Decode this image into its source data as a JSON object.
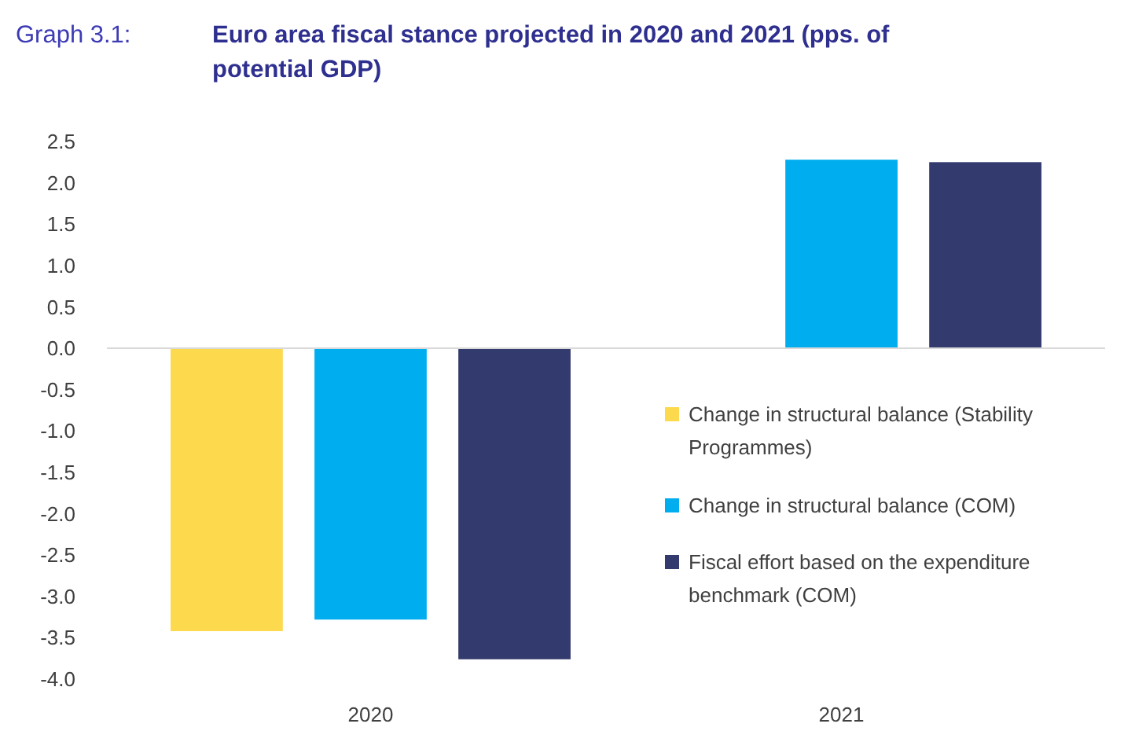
{
  "chart_data": {
    "type": "bar",
    "title": "Euro area fiscal stance projected in 2020 and 2021 (pps. of potential GDP)",
    "annotations": [
      "Graph 3.1:"
    ],
    "categories": [
      "2020",
      "2021"
    ],
    "series": [
      {
        "name": "Change in structural balance (Stability Programmes)",
        "color": "#fdd94e",
        "values": [
          -3.42,
          null
        ]
      },
      {
        "name": "Change in structural balance (COM)",
        "color": "#00aeef",
        "values": [
          -3.28,
          2.28
        ]
      },
      {
        "name": "Fiscal effort based on the expenditure benchmark (COM)",
        "color": "#333a6e",
        "values": [
          -3.76,
          2.25
        ]
      }
    ],
    "ylim": [
      -4.0,
      2.5
    ],
    "yticks": [
      {
        "value": -4,
        "label": "-4.0"
      },
      {
        "value": -3.5,
        "label": "-3.5"
      },
      {
        "value": -3,
        "label": "-3.0"
      },
      {
        "value": -2.5,
        "label": "-2.5"
      },
      {
        "value": -2,
        "label": "-2.0"
      },
      {
        "value": -1.5,
        "label": "-1.5"
      },
      {
        "value": -1,
        "label": "-1.0"
      },
      {
        "value": -0.5,
        "label": "-0.5"
      },
      {
        "value": 0,
        "label": "0.0"
      },
      {
        "value": 0.5,
        "label": "0.5"
      },
      {
        "value": 1,
        "label": "1.0"
      },
      {
        "value": 1.5,
        "label": "1.5"
      },
      {
        "value": 2,
        "label": "2.0"
      },
      {
        "value": 2.5,
        "label": "2.5"
      }
    ],
    "legend": "right"
  }
}
